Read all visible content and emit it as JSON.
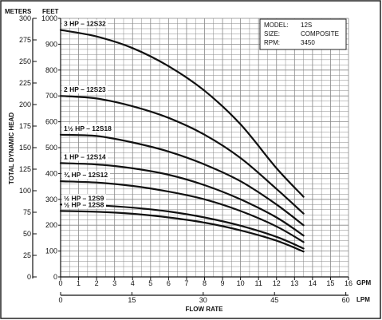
{
  "chart_data": {
    "type": "line",
    "info_box": {
      "rows": [
        {
          "key": "MODEL:",
          "value": "12S"
        },
        {
          "key": "SIZE:",
          "value": "COMPOSITE"
        },
        {
          "key": "RPM:",
          "value": "3450"
        }
      ]
    },
    "xlabel": "FLOW RATE",
    "x_unit_gpm": "GPM",
    "x_unit_lpm": "LPM",
    "ylabel": "TOTAL DYNAMIC HEAD",
    "y_unit_meters": "METERS",
    "y_unit_feet": "FEET",
    "xlim": [
      0,
      16
    ],
    "ylim_feet": [
      0,
      1000
    ],
    "ylim_meters": [
      0,
      300
    ],
    "gpm_ticks": [
      "0",
      "1",
      "2",
      "3",
      "4",
      "5",
      "6",
      "7",
      "8",
      "9",
      "10",
      "11",
      "12",
      "13",
      "14",
      "15",
      "16"
    ],
    "lpm_ticks": [
      {
        "value": 0,
        "label": "0"
      },
      {
        "value": 15,
        "label": "15"
      },
      {
        "value": 30,
        "label": "30"
      },
      {
        "value": 45,
        "label": "45"
      },
      {
        "value": 60,
        "label": "60"
      }
    ],
    "feet_ticks": [
      "0",
      "100",
      "200",
      "300",
      "400",
      "500",
      "600",
      "700",
      "800",
      "900",
      "1000"
    ],
    "meter_ticks": [
      "0",
      "25",
      "50",
      "75",
      "100",
      "125",
      "150",
      "175",
      "200",
      "225",
      "250",
      "275",
      "300"
    ],
    "series": [
      {
        "name": "3 HP – 12S32",
        "x": [
          0,
          2,
          4,
          6,
          8,
          10,
          12,
          13.5
        ],
        "y": [
          955,
          930,
          885,
          815,
          720,
          590,
          420,
          310
        ]
      },
      {
        "name": "2 HP – 12S23",
        "x": [
          0,
          2,
          4,
          6,
          8,
          10,
          12,
          13.5
        ],
        "y": [
          700,
          690,
          660,
          615,
          550,
          460,
          340,
          245
        ]
      },
      {
        "name": "1½ HP – 12S18",
        "x": [
          0,
          2,
          4,
          6,
          8,
          10,
          12,
          13.5
        ],
        "y": [
          550,
          545,
          520,
          485,
          435,
          370,
          280,
          200
        ]
      },
      {
        "name": "1 HP – 12S14",
        "x": [
          0,
          2,
          4,
          6,
          8,
          10,
          12,
          13.5
        ],
        "y": [
          440,
          435,
          420,
          395,
          355,
          300,
          230,
          160
        ]
      },
      {
        "name": "¾ HP – 12S12",
        "x": [
          0,
          2,
          4,
          6,
          8,
          10,
          12,
          13.5
        ],
        "y": [
          370,
          365,
          352,
          330,
          300,
          255,
          195,
          135
        ]
      },
      {
        "name": "½ HP – 12S9",
        "x": [
          0,
          2,
          4,
          6,
          8,
          10,
          12,
          13.5
        ],
        "y": [
          280,
          277,
          268,
          253,
          230,
          198,
          155,
          110
        ]
      },
      {
        "name": "½ HP – 12S8",
        "x": [
          0,
          2,
          4,
          6,
          8,
          10,
          12,
          13.5
        ],
        "y": [
          255,
          252,
          244,
          230,
          210,
          180,
          140,
          98
        ]
      }
    ],
    "grid": true
  }
}
